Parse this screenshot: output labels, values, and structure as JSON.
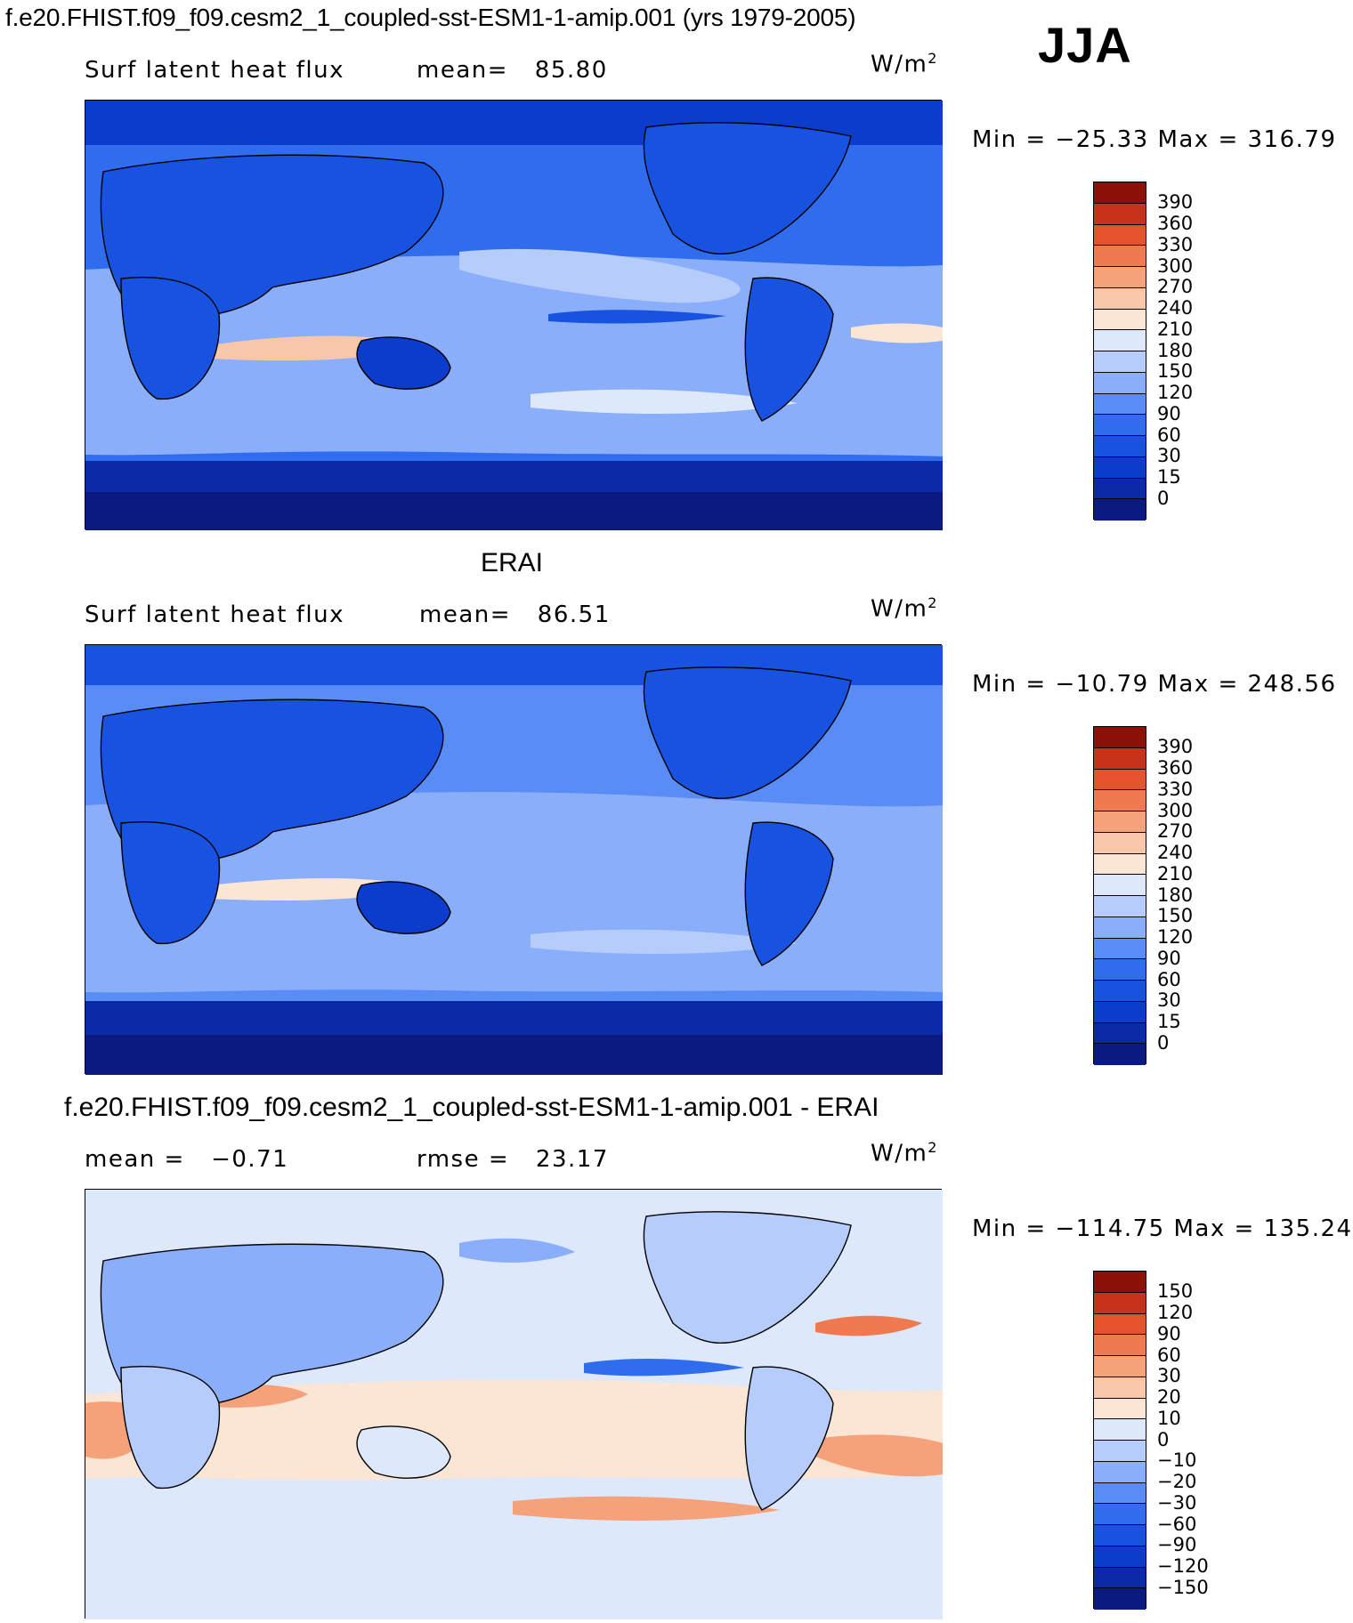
{
  "figure": {
    "title": "f.e20.FHIST.f09_f09.cesm2_1_coupled-sst-ESM1-1-amip.001 (yrs 1979-2005)",
    "season": "JJA"
  },
  "panels": [
    {
      "heading": "",
      "left_text": "Surf latent heat flux",
      "mid_label": "mean=",
      "mid_value": "85.80",
      "unit_base": "W/m",
      "unit_exp": "2",
      "min_label": "Min =",
      "min_value": "−25.33",
      "max_label": "Max =",
      "max_value": "316.79",
      "colorbar_levels": [
        "390",
        "360",
        "330",
        "300",
        "270",
        "240",
        "210",
        "180",
        "150",
        "120",
        "90",
        "60",
        "30",
        "15",
        "0"
      ]
    },
    {
      "heading": "ERAI",
      "left_text": "Surf latent heat flux",
      "mid_label": "mean=",
      "mid_value": "86.51",
      "unit_base": "W/m",
      "unit_exp": "2",
      "min_label": "Min =",
      "min_value": "−10.79",
      "max_label": "Max =",
      "max_value": "248.56",
      "colorbar_levels": [
        "390",
        "360",
        "330",
        "300",
        "270",
        "240",
        "210",
        "180",
        "150",
        "120",
        "90",
        "60",
        "30",
        "15",
        "0"
      ]
    },
    {
      "heading": "f.e20.FHIST.f09_f09.cesm2_1_coupled-sst-ESM1-1-amip.001 - ERAI",
      "left_text": "mean =   −0.71",
      "mid_label": "rmse =",
      "mid_value": "23.17",
      "unit_base": "W/m",
      "unit_exp": "2",
      "min_label": "Min =",
      "min_value": "−114.75",
      "max_label": "Max =",
      "max_value": "135.24",
      "colorbar_levels": [
        "150",
        "120",
        "90",
        "60",
        "30",
        "20",
        "10",
        "0",
        "−10",
        "−20",
        "−30",
        "−60",
        "−90",
        "−120",
        "−150"
      ]
    }
  ],
  "chart_data": [
    {
      "type": "heatmap",
      "title": "Surf latent heat flux",
      "units": "W/m2",
      "mean": 85.8,
      "min": -25.33,
      "max": 316.79,
      "colorbar_levels": [
        0,
        15,
        30,
        60,
        90,
        120,
        150,
        180,
        210,
        240,
        270,
        300,
        330,
        360,
        390
      ],
      "colorbar_colors": [
        "#0a1a80",
        "#0a2aa8",
        "#0b3ccc",
        "#1752e0",
        "#2f6cee",
        "#5a8cf5",
        "#8aaefa",
        "#b6ccfb",
        "#dde8fb",
        "#fbe6d6",
        "#f8c6a8",
        "#f5a17a",
        "#f07a4f",
        "#e4532c",
        "#c7321a",
        "#8c1108"
      ]
    },
    {
      "type": "heatmap",
      "title": "Surf latent heat flux",
      "units": "W/m2",
      "mean": 86.51,
      "min": -10.79,
      "max": 248.56,
      "colorbar_levels": [
        0,
        15,
        30,
        60,
        90,
        120,
        150,
        180,
        210,
        240,
        270,
        300,
        330,
        360,
        390
      ],
      "colorbar_colors": [
        "#0a1a80",
        "#0a2aa8",
        "#0b3ccc",
        "#1752e0",
        "#2f6cee",
        "#5a8cf5",
        "#8aaefa",
        "#b6ccfb",
        "#dde8fb",
        "#fbe6d6",
        "#f8c6a8",
        "#f5a17a",
        "#f07a4f",
        "#e4532c",
        "#c7321a",
        "#8c1108"
      ]
    },
    {
      "type": "heatmap",
      "units": "W/m2",
      "mean": -0.71,
      "rmse": 23.17,
      "min": -114.75,
      "max": 135.24,
      "colorbar_levels": [
        -150,
        -120,
        -90,
        -60,
        -30,
        -20,
        -10,
        0,
        10,
        20,
        30,
        60,
        90,
        120,
        150
      ],
      "colorbar_colors": [
        "#0a1a80",
        "#0a2aa8",
        "#0b3ccc",
        "#1752e0",
        "#2f6cee",
        "#5a8cf5",
        "#8aaefa",
        "#b6ccfb",
        "#dde8fb",
        "#fbe6d6",
        "#f8c6a8",
        "#f5a17a",
        "#f07a4f",
        "#e4532c",
        "#c7321a",
        "#8c1108"
      ]
    }
  ]
}
